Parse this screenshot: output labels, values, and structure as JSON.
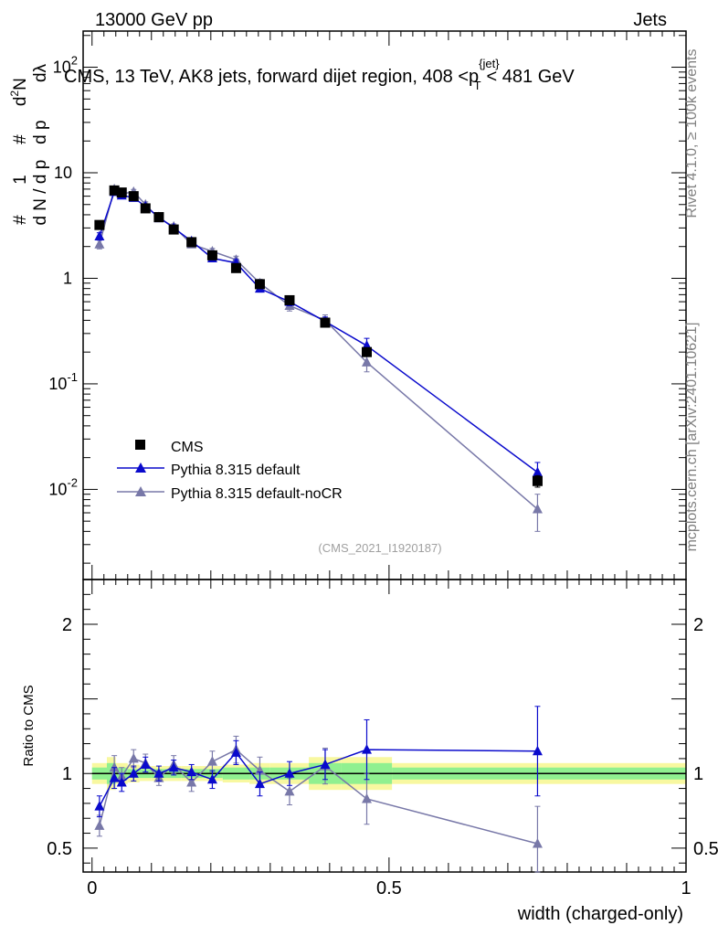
{
  "header": {
    "energy_label": "13000 GeV pp",
    "category_label": "Jets",
    "plot_title": "CMS, 13 TeV, AK8 jets, forward dijet region, 408 <p",
    "plot_title_super": "{jet}",
    "plot_title_sub": "T",
    "plot_title_end": "< 481 GeV",
    "rivet_label": "Rivet 4.1.0, ≥ 100k events",
    "mcplots_label": "mcplots.cern.ch [arXiv:2401.10621]",
    "analysis_id": "(CMS_2021_I1920187)"
  },
  "colors": {
    "cms": "#000000",
    "default": "#0a0acc",
    "nocr": "#7878a8",
    "band_inner": "#90f090",
    "band_outer": "#f8f8a0"
  },
  "chart_data": [
    {
      "type": "line",
      "panel": "main",
      "ylabel": "# 1/(dN/dp_T #) d²N/(dp_T dλ)",
      "yscale": "log",
      "ylim": [
        0.0014,
        220
      ],
      "xlim": [
        -0.015,
        1.0
      ],
      "ytick_labels": [
        "10^-2",
        "10^-1",
        "1",
        "10",
        "10^2"
      ],
      "ytick_values": [
        0.01,
        0.1,
        1,
        10,
        100
      ],
      "legend_position": "bottom-left",
      "series": [
        {
          "name": "CMS",
          "marker": "square",
          "x": [
            0.0125,
            0.0375,
            0.05,
            0.07,
            0.09,
            0.1125,
            0.1375,
            0.1675,
            0.2025,
            0.2425,
            0.2825,
            0.3325,
            0.3925,
            0.4625,
            0.75
          ],
          "y": [
            3.2,
            6.8,
            6.5,
            6.0,
            4.6,
            3.8,
            2.9,
            2.2,
            1.65,
            1.25,
            0.88,
            0.62,
            0.38,
            0.2,
            0.012
          ],
          "err": [
            0.1,
            0.2,
            0.2,
            0.2,
            0.15,
            0.1,
            0.08,
            0.06,
            0.05,
            0.04,
            0.03,
            0.03,
            0.02,
            0.015,
            0.0015
          ]
        },
        {
          "name": "Pythia 8.315 default",
          "marker": "triangle",
          "x": [
            0.0125,
            0.0375,
            0.05,
            0.07,
            0.09,
            0.1125,
            0.1375,
            0.1675,
            0.2025,
            0.2425,
            0.2825,
            0.3325,
            0.3925,
            0.4625,
            0.75
          ],
          "y": [
            2.5,
            6.6,
            6.1,
            5.8,
            4.8,
            3.8,
            3.0,
            2.25,
            1.55,
            1.4,
            0.8,
            0.6,
            0.39,
            0.23,
            0.0145
          ],
          "err": [
            0.2,
            0.4,
            0.3,
            0.3,
            0.25,
            0.2,
            0.15,
            0.12,
            0.09,
            0.1,
            0.06,
            0.05,
            0.04,
            0.04,
            0.0035
          ]
        },
        {
          "name": "Pythia 8.315 default-noCR",
          "marker": "triangle",
          "x": [
            0.0125,
            0.0375,
            0.05,
            0.07,
            0.09,
            0.1125,
            0.1375,
            0.1675,
            0.2025,
            0.2425,
            0.2825,
            0.3325,
            0.3925,
            0.4625,
            0.75
          ],
          "y": [
            2.1,
            7.0,
            6.3,
            6.6,
            5.0,
            3.7,
            3.1,
            2.1,
            1.8,
            1.5,
            0.9,
            0.55,
            0.4,
            0.16,
            0.0065
          ],
          "err": [
            0.2,
            0.4,
            0.3,
            0.35,
            0.3,
            0.2,
            0.18,
            0.12,
            0.12,
            0.12,
            0.08,
            0.06,
            0.05,
            0.03,
            0.0025
          ]
        }
      ]
    },
    {
      "type": "line",
      "panel": "ratio",
      "ylabel": "Ratio to CMS",
      "xlabel": "width (charged-only)",
      "ylim": [
        0.34,
        2.3
      ],
      "xlim": [
        -0.015,
        1.0
      ],
      "ytick_labels": [
        "0.5",
        "1",
        "2"
      ],
      "ytick_values": [
        0.5,
        1,
        2
      ],
      "xtick_labels": [
        "0",
        "0.5",
        "1"
      ],
      "xtick_values": [
        0,
        0.5,
        1
      ],
      "bands": [
        {
          "x0": 0.0,
          "x1": 0.025,
          "inner": 0.04,
          "outer": 0.07
        },
        {
          "x0": 0.025,
          "x1": 0.04,
          "inner": 0.07,
          "outer": 0.11
        },
        {
          "x0": 0.04,
          "x1": 0.06,
          "inner": 0.04,
          "outer": 0.07
        },
        {
          "x0": 0.06,
          "x1": 0.08,
          "inner": 0.03,
          "outer": 0.06
        },
        {
          "x0": 0.08,
          "x1": 0.1,
          "inner": 0.03,
          "outer": 0.05
        },
        {
          "x0": 0.1,
          "x1": 0.125,
          "inner": 0.03,
          "outer": 0.05
        },
        {
          "x0": 0.125,
          "x1": 0.15,
          "inner": 0.03,
          "outer": 0.05
        },
        {
          "x0": 0.15,
          "x1": 0.185,
          "inner": 0.03,
          "outer": 0.05
        },
        {
          "x0": 0.185,
          "x1": 0.22,
          "inner": 0.03,
          "outer": 0.05
        },
        {
          "x0": 0.22,
          "x1": 0.265,
          "inner": 0.04,
          "outer": 0.06
        },
        {
          "x0": 0.265,
          "x1": 0.3,
          "inner": 0.04,
          "outer": 0.07
        },
        {
          "x0": 0.3,
          "x1": 0.365,
          "inner": 0.04,
          "outer": 0.07
        },
        {
          "x0": 0.365,
          "x1": 0.42,
          "inner": 0.07,
          "outer": 0.11
        },
        {
          "x0": 0.42,
          "x1": 0.505,
          "inner": 0.07,
          "outer": 0.11
        },
        {
          "x0": 0.505,
          "x1": 1.0,
          "inner": 0.04,
          "outer": 0.07
        }
      ],
      "series": [
        {
          "name": "Pythia 8.315 default",
          "x": [
            0.0125,
            0.0375,
            0.05,
            0.07,
            0.09,
            0.1125,
            0.1375,
            0.1675,
            0.2025,
            0.2425,
            0.2825,
            0.3325,
            0.3925,
            0.4625,
            0.75
          ],
          "y": [
            0.78,
            0.97,
            0.94,
            1.0,
            1.06,
            1.0,
            1.04,
            1.01,
            0.96,
            1.14,
            0.93,
            1.0,
            1.06,
            1.16,
            1.15
          ],
          "err": [
            0.07,
            0.07,
            0.06,
            0.05,
            0.05,
            0.05,
            0.05,
            0.05,
            0.06,
            0.08,
            0.08,
            0.08,
            0.1,
            0.2,
            0.3
          ]
        },
        {
          "name": "Pythia 8.315 default-noCR",
          "x": [
            0.0125,
            0.0375,
            0.05,
            0.07,
            0.09,
            0.1125,
            0.1375,
            0.1675,
            0.2025,
            0.2425,
            0.2825,
            0.3325,
            0.3925,
            0.4625,
            0.75
          ],
          "y": [
            0.65,
            1.04,
            0.98,
            1.1,
            1.07,
            0.97,
            1.06,
            0.94,
            1.08,
            1.16,
            1.02,
            0.88,
            1.05,
            0.83,
            0.53
          ],
          "err": [
            0.07,
            0.08,
            0.06,
            0.06,
            0.06,
            0.05,
            0.06,
            0.06,
            0.07,
            0.09,
            0.09,
            0.09,
            0.12,
            0.17,
            0.25
          ]
        }
      ]
    }
  ]
}
